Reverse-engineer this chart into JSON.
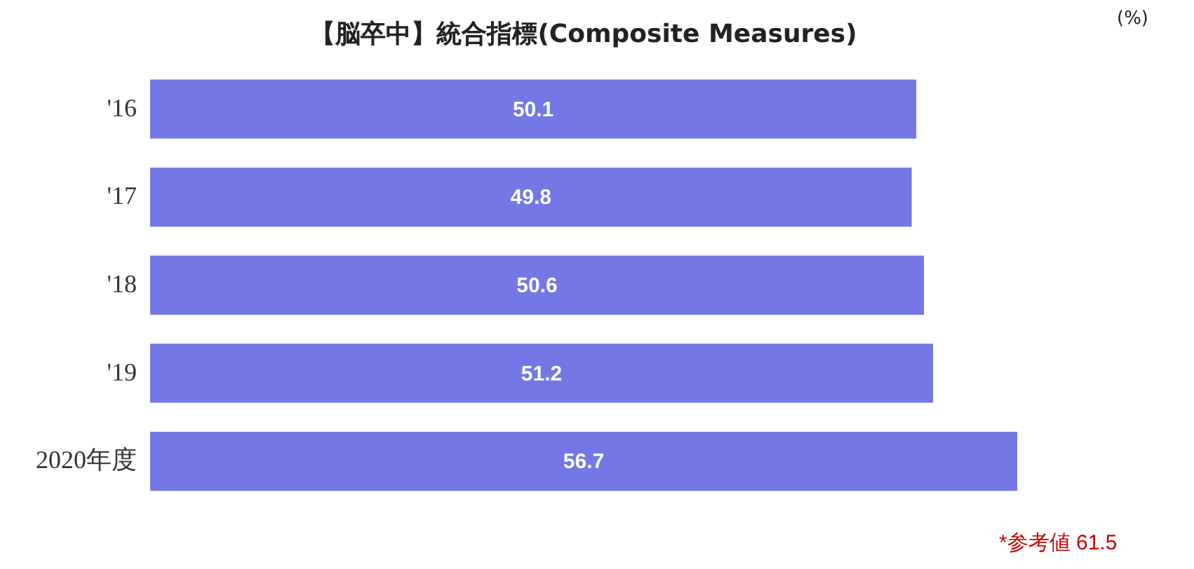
{
  "chart_data": {
    "type": "bar",
    "orientation": "horizontal",
    "title": "【脳卒中】統合指標(Composite  Measures)",
    "categories": [
      "'16",
      "'17",
      "'18",
      "'19",
      "2020年度"
    ],
    "values": [
      50.1,
      49.8,
      50.6,
      51.2,
      56.7
    ],
    "color": "#7378e6",
    "data_labels": true,
    "annotations": [
      "(%)",
      "*参考値 61.5"
    ]
  }
}
